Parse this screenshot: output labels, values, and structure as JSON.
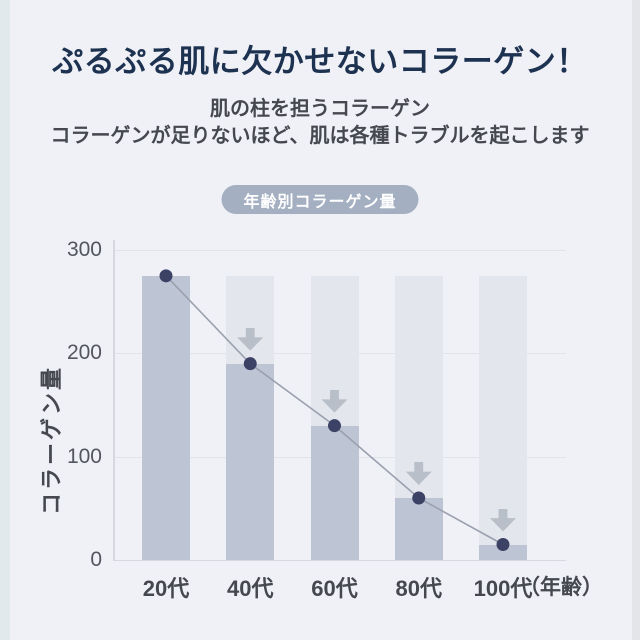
{
  "page": {
    "bg": "#f0f1f6",
    "left_strip_color": "#e2e9ec",
    "right_strip_color": "#e3e5e9"
  },
  "header": {
    "title": "ぷるぷる肌に欠かせないコラーゲン！",
    "title_color": "#1d3150",
    "subtitle_line1": "肌の柱を担うコラーゲン",
    "subtitle_line2": "コラーゲンが足りないほど、肌は各種トラブルを起こします",
    "subtitle_color": "#45484f"
  },
  "badge": {
    "label": "年齢別コラーゲン量",
    "bg": "#a4afc2",
    "text_color": "#ffffff"
  },
  "chart_data": {
    "type": "bar",
    "title": "年齢別コラーゲン量",
    "categories": [
      "20代",
      "40代",
      "60代",
      "80代",
      "100代"
    ],
    "values": [
      275,
      190,
      130,
      60,
      15
    ],
    "background_bar_value": 275,
    "has_down_arrow": [
      false,
      true,
      true,
      true,
      true
    ],
    "ylabel": "コラーゲン量",
    "xlabel_suffix": "（年齢）",
    "yticks": [
      0,
      100,
      200,
      300
    ],
    "ylim": [
      0,
      300
    ],
    "grid": true,
    "legend": "none",
    "colors": {
      "bar": "#bdc4d4",
      "background_bar": "#e3e6ec",
      "line": "#9aa0ad",
      "dot": "#3c4265",
      "arrow": "#b2b7c2",
      "gridline": "#e1e3e9",
      "axis_line": "#d6d9e0",
      "ytick_text": "#53565e",
      "xtick_text": "#45484f"
    }
  }
}
